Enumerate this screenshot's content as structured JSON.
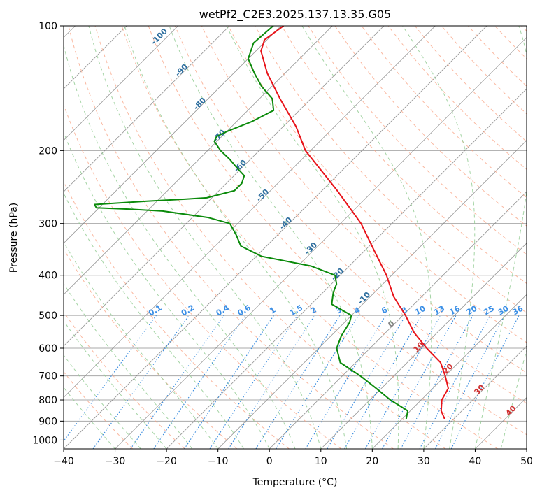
{
  "chart_data": {
    "type": "line",
    "title": "wetPf2_C2E3.2025.137.13.35.G05",
    "xlabel": "Temperature (°C)",
    "ylabel": "Pressure (hPa)",
    "xlim": [
      -40,
      50
    ],
    "ylim": [
      1050,
      100
    ],
    "y_scale": "log",
    "x_ticks": [
      -40,
      -30,
      -20,
      -10,
      0,
      10,
      20,
      30,
      40,
      50
    ],
    "x_tick_labels": [
      "−40",
      "−30",
      "−20",
      "−10",
      "0",
      "10",
      "20",
      "30",
      "40",
      "50"
    ],
    "y_ticks": [
      100,
      200,
      300,
      400,
      500,
      600,
      700,
      800,
      900,
      1000
    ],
    "y_tick_labels": [
      "100",
      "200",
      "300",
      "400",
      "500",
      "600",
      "700",
      "800",
      "900",
      "1000"
    ],
    "grid": true,
    "skew": 45,
    "colors": {
      "temperature": "#e8141a",
      "dewpoint": "#0a8a0a",
      "dry_adiabat": "#f8a080",
      "moist_adiabat": "#94cc94",
      "mixing_ratio": "#3388dd",
      "isotherm": "#808080",
      "isobar": "#a8a8a8",
      "dry_adiabat_label": "#2f6f9f",
      "mixing_label": "#3b8fe6",
      "moist_label": "#d03030"
    },
    "series": [
      {
        "key": "temperature",
        "p": [
          890,
          850,
          800,
          750,
          700,
          650,
          600,
          550,
          500,
          450,
          400,
          350,
          300,
          250,
          200,
          175,
          150,
          130,
          115,
          108,
          100
        ],
        "t": [
          28.3,
          26.0,
          24.0,
          23.0,
          20.0,
          16.5,
          11.0,
          5.5,
          0.5,
          -5.5,
          -11.0,
          -18.0,
          -26.0,
          -37.0,
          -51.0,
          -57.5,
          -66.0,
          -73.5,
          -79.0,
          -80.5,
          -79.5
        ]
      },
      {
        "key": "dewpoint",
        "p": [
          890,
          850,
          800,
          750,
          700,
          650,
          600,
          560,
          520,
          500,
          470,
          440,
          420,
          400,
          380,
          360,
          340,
          320,
          300,
          290,
          280,
          277,
          275,
          270,
          265,
          262,
          260,
          250,
          240,
          230,
          220,
          210,
          200,
          190,
          185,
          180,
          170,
          160,
          150,
          140,
          130,
          120,
          110,
          100
        ],
        "t": [
          20.8,
          19.5,
          14.0,
          9.0,
          3.5,
          -3.0,
          -6.5,
          -8.0,
          -9.0,
          -10.0,
          -16.0,
          -18.0,
          -19.0,
          -21.0,
          -27.5,
          -39.0,
          -45.0,
          -48.0,
          -51.5,
          -57.0,
          -67.0,
          -74.0,
          -80.5,
          -81.5,
          -72.0,
          -65.0,
          -61.0,
          -57.0,
          -57.0,
          -58.0,
          -61.0,
          -64.0,
          -67.5,
          -70.5,
          -71.0,
          -70.0,
          -67.0,
          -65.0,
          -67.5,
          -72.0,
          -76.0,
          -80.0,
          -82.0,
          -81.5
        ]
      }
    ],
    "dry_adiabat_labels": [
      "-100",
      "-90",
      "-80",
      "-70",
      "-60",
      "-50",
      "-40",
      "-30",
      "-20",
      "-10"
    ],
    "mixing_ratio_labels": [
      "0.1",
      "0.2",
      "0.4",
      "0.6",
      "1",
      "1.5",
      "2",
      "3",
      "4",
      "6",
      "8",
      "10",
      "13",
      "16",
      "20",
      "25",
      "30",
      "36"
    ],
    "moist_adiabat_labels": [
      "0",
      "10",
      "20",
      "30",
      "40"
    ]
  }
}
